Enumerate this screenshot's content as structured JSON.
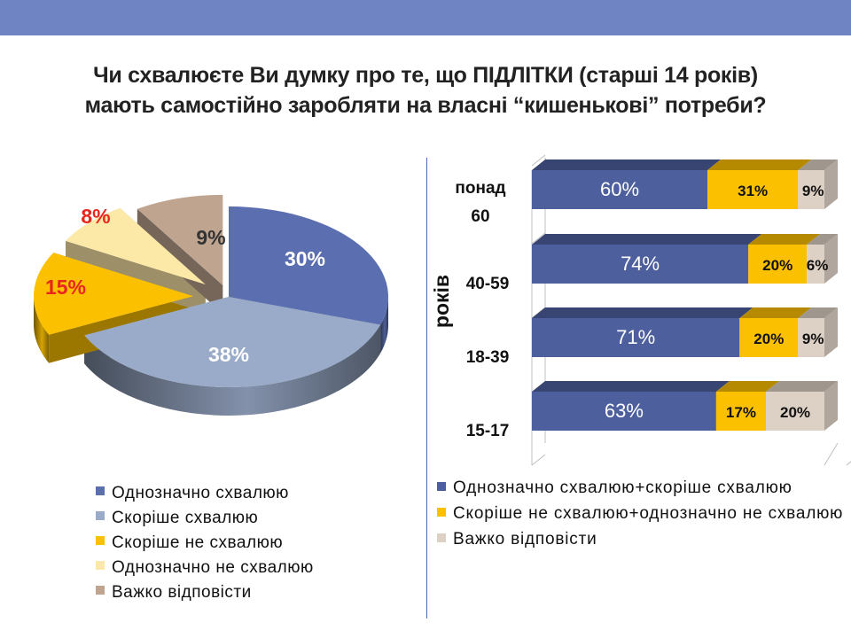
{
  "title": {
    "line1": "Чи схвалюєте Ви думку про те, що ПІДЛІТКИ (старші 14 років)",
    "line2": "мають самостійно заробляти на власні “кишенькові” потреби?"
  },
  "colors": {
    "topbar": "#6f84c2",
    "definitely_approve": "#5b6fb0",
    "rather_approve": "#9aabc9",
    "rather_disapprove": "#fbc000",
    "definitely_disapprove": "#fde9a7",
    "hard_to_say": "#bfa590",
    "bar_approve": "#4e5f9e",
    "bar_disapprove": "#fbc000",
    "bar_hard": "#ddd0c4"
  },
  "chart_data": [
    {
      "type": "pie",
      "slices": [
        {
          "label": "Однозначно схвалюю",
          "value": 30,
          "display": "30%",
          "color": "#5b6fb0"
        },
        {
          "label": "Скоріше схвалюю",
          "value": 38,
          "display": "38%",
          "color": "#9aabc9"
        },
        {
          "label": "Скоріше не схвалюю",
          "value": 15,
          "display": "15%",
          "color": "#fbc000"
        },
        {
          "label": "Однозначно не схвалюю",
          "value": 8,
          "display": "8%",
          "color": "#fde9a7"
        },
        {
          "label": "Важко відповісти",
          "value": 9,
          "display": "9%",
          "color": "#bfa590"
        }
      ],
      "legend_position": "bottom"
    },
    {
      "type": "bar",
      "orientation": "horizontal",
      "stacked": true,
      "ylabel": "років",
      "categories": [
        "понад 60",
        "40-59",
        "18-39",
        "15-17"
      ],
      "series": [
        {
          "name": "Однозначно схвалюю+скоріше схвалюю",
          "values": [
            60,
            74,
            71,
            63
          ],
          "labels": [
            "60%",
            "74%",
            "71%",
            "63%"
          ],
          "color": "#4e5f9e"
        },
        {
          "name": "Скоріше не схвалюю+однозначно не схвалюю",
          "values": [
            31,
            20,
            20,
            17
          ],
          "labels": [
            "31%",
            "20%",
            "20%",
            "17%"
          ],
          "color": "#fbc000"
        },
        {
          "name": "Важко відповісти",
          "values": [
            9,
            6,
            9,
            20
          ],
          "labels": [
            "9%",
            "6%",
            "9%",
            "20%"
          ],
          "color": "#ddd0c4"
        }
      ],
      "xlim": [
        0,
        100
      ],
      "legend_position": "bottom"
    }
  ]
}
